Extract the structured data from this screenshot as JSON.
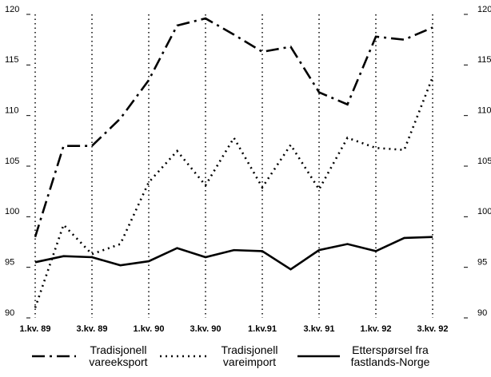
{
  "chart_data": {
    "type": "line",
    "categories": [
      "1.kv. 89",
      null,
      "3.kv. 89",
      null,
      "1.kv. 90",
      null,
      "3.kv. 90",
      null,
      "1.kv.91",
      null,
      "3.kv. 91",
      null,
      "1.kv. 92",
      null,
      "3.kv. 92"
    ],
    "ylim": [
      90,
      120
    ],
    "yticks": [
      90,
      95,
      100,
      105,
      110,
      115,
      120
    ],
    "series": [
      {
        "name": "Tradisjonell vareeksport",
        "color": "#000000",
        "dash": "dashdot",
        "values": [
          98,
          107.0,
          107.0,
          109.7,
          113.5,
          118.9,
          119.6,
          118.0,
          116.3,
          116.8,
          112.3,
          111.1,
          117.8,
          117.5,
          118.7
        ]
      },
      {
        "name": "Tradisjonell vareimport",
        "color": "#000000",
        "dash": "dotted",
        "values": [
          91.0,
          99.2,
          96.3,
          97.3,
          103.4,
          106.5,
          103.1,
          107.8,
          102.9,
          107.1,
          102.7,
          107.8,
          106.8,
          106.6,
          113.8
        ]
      },
      {
        "name": "Etterspørsel fra fastlands-Norge",
        "color": "#000000",
        "dash": "solid",
        "values": [
          95.5,
          96.1,
          96.0,
          95.2,
          95.6,
          96.9,
          96.0,
          96.7,
          96.6,
          94.8,
          96.7,
          97.3,
          96.6,
          97.9,
          98.0
        ]
      }
    ]
  }
}
